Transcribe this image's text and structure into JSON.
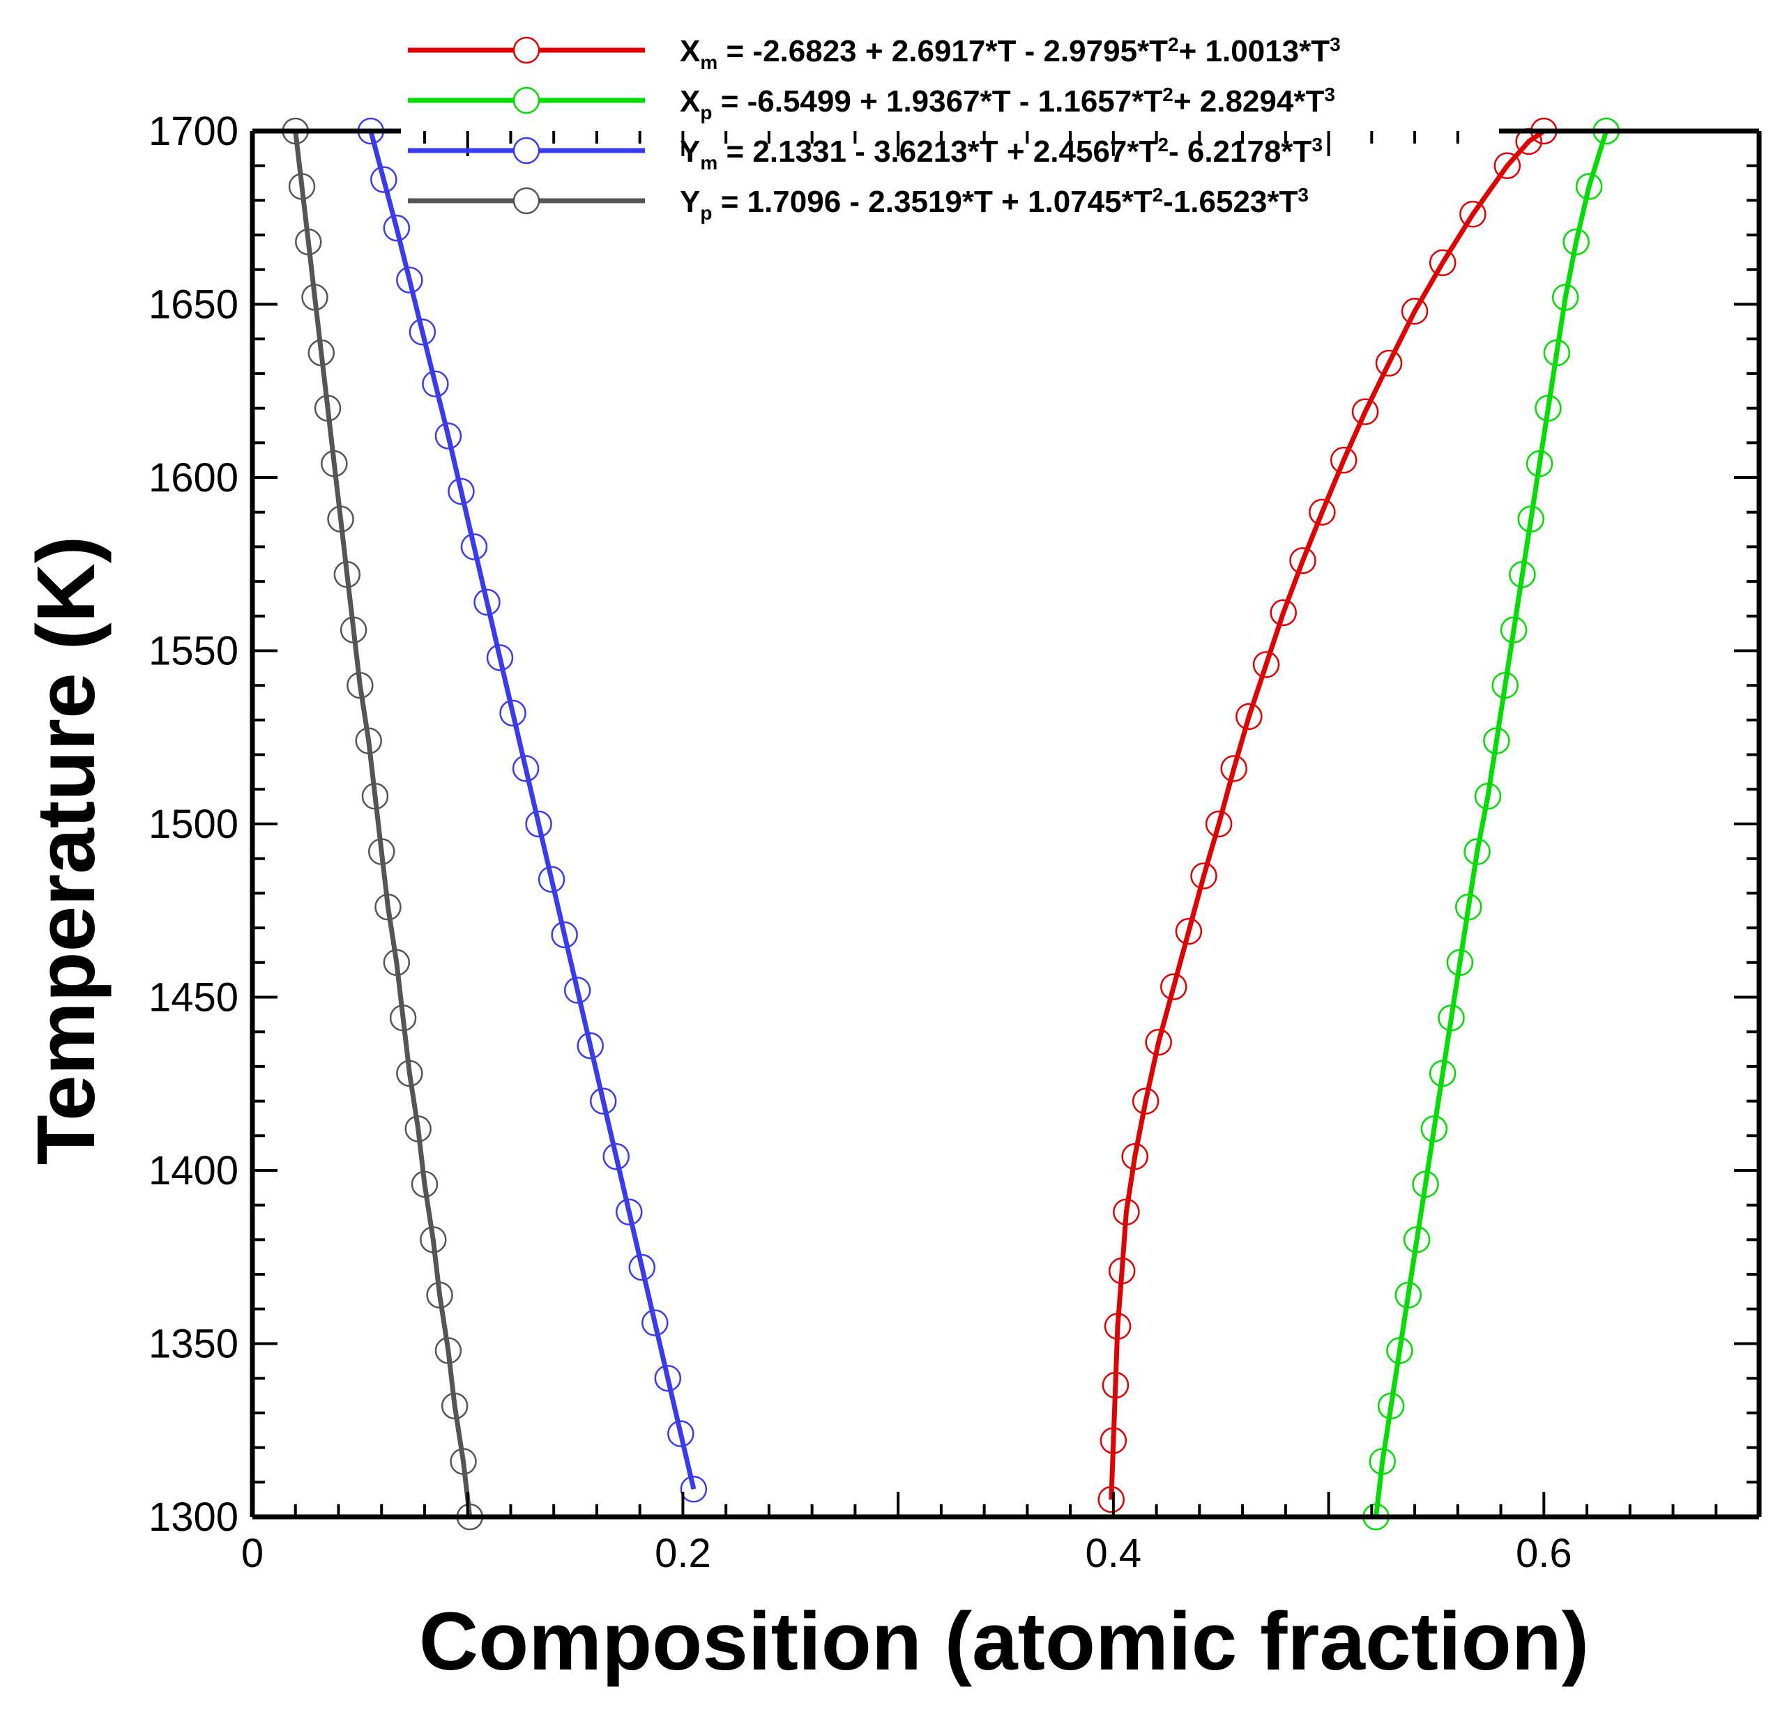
{
  "chart_data": {
    "type": "line",
    "title": "",
    "xlabel": "Composition (atomic fraction)",
    "ylabel": "Temperature (K)",
    "xlim": [
      0,
      0.7
    ],
    "ylim": [
      1300,
      1700
    ],
    "x_ticks": [
      "0",
      "0.2",
      "0.4",
      "0.6"
    ],
    "x_tick_values": [
      0,
      0.2,
      0.4,
      0.6
    ],
    "y_ticks": [
      "1300",
      "1350",
      "1400",
      "1450",
      "1500",
      "1550",
      "1600",
      "1650",
      "1700"
    ],
    "y_tick_values": [
      1300,
      1350,
      1400,
      1450,
      1500,
      1550,
      1600,
      1650,
      1700
    ],
    "grid": false,
    "legend_position": "top",
    "series": [
      {
        "name": "Xm",
        "legend_label": {
          "var": "X",
          "sub": "m",
          "eq": " = -2.6823 + 2.6917*T - 2.9795*T",
          "sup1": "2",
          "eq2": "+ 1.0013*T",
          "sup2": "3"
        },
        "color": "#e00000",
        "marker": "open-circle",
        "points": [
          [
            0.399,
            1305
          ],
          [
            0.4,
            1322
          ],
          [
            0.401,
            1338
          ],
          [
            0.402,
            1355
          ],
          [
            0.404,
            1371
          ],
          [
            0.406,
            1388
          ],
          [
            0.41,
            1404
          ],
          [
            0.415,
            1420
          ],
          [
            0.421,
            1437
          ],
          [
            0.428,
            1453
          ],
          [
            0.435,
            1469
          ],
          [
            0.442,
            1485
          ],
          [
            0.449,
            1500
          ],
          [
            0.456,
            1516
          ],
          [
            0.463,
            1531
          ],
          [
            0.471,
            1546
          ],
          [
            0.479,
            1561
          ],
          [
            0.488,
            1576
          ],
          [
            0.497,
            1590
          ],
          [
            0.507,
            1605
          ],
          [
            0.517,
            1619
          ],
          [
            0.528,
            1633
          ],
          [
            0.54,
            1648
          ],
          [
            0.553,
            1662
          ],
          [
            0.567,
            1676
          ],
          [
            0.583,
            1690
          ],
          [
            0.593,
            1697
          ],
          [
            0.6,
            1700
          ]
        ]
      },
      {
        "name": "Xp",
        "legend_label": {
          "var": "X",
          "sub": "p",
          "eq": " =  -6.5499 + 1.9367*T - 1.1657*T",
          "sup1": "2",
          "eq2": "+ 2.8294*T",
          "sup2": "3"
        },
        "color": "#00dd00",
        "marker": "open-circle",
        "points": [
          [
            0.522,
            1300
          ],
          [
            0.525,
            1316
          ],
          [
            0.529,
            1332
          ],
          [
            0.533,
            1348
          ],
          [
            0.537,
            1364
          ],
          [
            0.541,
            1380
          ],
          [
            0.545,
            1396
          ],
          [
            0.549,
            1412
          ],
          [
            0.553,
            1428
          ],
          [
            0.557,
            1444
          ],
          [
            0.561,
            1460
          ],
          [
            0.565,
            1476
          ],
          [
            0.569,
            1492
          ],
          [
            0.574,
            1508
          ],
          [
            0.578,
            1524
          ],
          [
            0.582,
            1540
          ],
          [
            0.586,
            1556
          ],
          [
            0.59,
            1572
          ],
          [
            0.594,
            1588
          ],
          [
            0.598,
            1604
          ],
          [
            0.602,
            1620
          ],
          [
            0.606,
            1636
          ],
          [
            0.61,
            1652
          ],
          [
            0.615,
            1668
          ],
          [
            0.621,
            1684
          ],
          [
            0.629,
            1700
          ]
        ]
      },
      {
        "name": "Ym",
        "legend_label": {
          "var": "Y",
          "sub": "m",
          "eq": " =  2.1331 - 3.6213*T + 2.4567*T",
          "sup1": "2",
          "eq2": "- 6.2178*T",
          "sup2": "3"
        },
        "color": "#3a3af0",
        "marker": "open-circle",
        "points": [
          [
            0.205,
            1308
          ],
          [
            0.199,
            1324
          ],
          [
            0.193,
            1340
          ],
          [
            0.187,
            1356
          ],
          [
            0.181,
            1372
          ],
          [
            0.175,
            1388
          ],
          [
            0.169,
            1404
          ],
          [
            0.163,
            1420
          ],
          [
            0.157,
            1436
          ],
          [
            0.151,
            1452
          ],
          [
            0.145,
            1468
          ],
          [
            0.139,
            1484
          ],
          [
            0.133,
            1500
          ],
          [
            0.127,
            1516
          ],
          [
            0.121,
            1532
          ],
          [
            0.115,
            1548
          ],
          [
            0.109,
            1564
          ],
          [
            0.103,
            1580
          ],
          [
            0.097,
            1596
          ],
          [
            0.091,
            1612
          ],
          [
            0.085,
            1627
          ],
          [
            0.079,
            1642
          ],
          [
            0.073,
            1657
          ],
          [
            0.067,
            1672
          ],
          [
            0.061,
            1686
          ],
          [
            0.055,
            1700
          ]
        ]
      },
      {
        "name": "Yp",
        "legend_label": {
          "var": "Y",
          "sub": "p",
          "eq": " =   1.7096 - 2.3519*T + 1.0745*T",
          "sup1": "2",
          "eq2": "-1.6523*T",
          "sup2": "3"
        },
        "color": "#555555",
        "marker": "open-circle",
        "points": [
          [
            0.101,
            1300
          ],
          [
            0.098,
            1316
          ],
          [
            0.094,
            1332
          ],
          [
            0.091,
            1348
          ],
          [
            0.087,
            1364
          ],
          [
            0.084,
            1380
          ],
          [
            0.08,
            1396
          ],
          [
            0.077,
            1412
          ],
          [
            0.073,
            1428
          ],
          [
            0.07,
            1444
          ],
          [
            0.067,
            1460
          ],
          [
            0.063,
            1476
          ],
          [
            0.06,
            1492
          ],
          [
            0.057,
            1508
          ],
          [
            0.054,
            1524
          ],
          [
            0.05,
            1540
          ],
          [
            0.047,
            1556
          ],
          [
            0.044,
            1572
          ],
          [
            0.041,
            1588
          ],
          [
            0.038,
            1604
          ],
          [
            0.035,
            1620
          ],
          [
            0.032,
            1636
          ],
          [
            0.029,
            1652
          ],
          [
            0.026,
            1668
          ],
          [
            0.023,
            1684
          ],
          [
            0.02,
            1700
          ]
        ]
      }
    ]
  }
}
